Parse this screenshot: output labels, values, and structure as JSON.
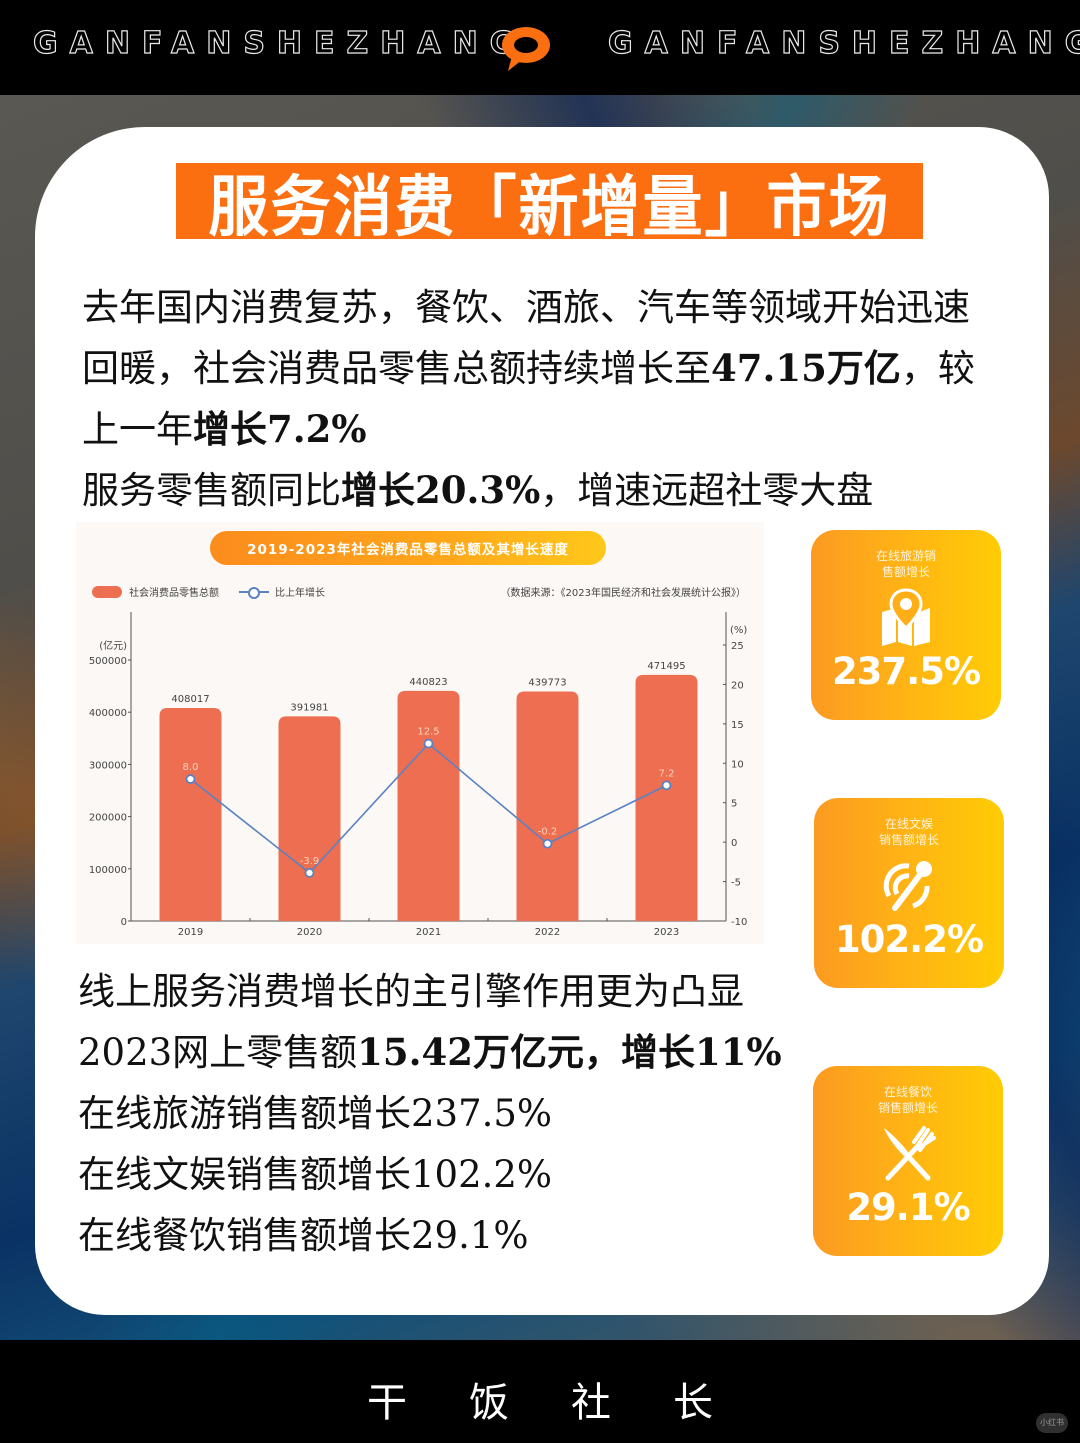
{
  "header": {
    "brand_left": "GANFANSHEZHANG",
    "brand_right": "GANFANSHEZHANG",
    "icon": "chat-bubble-icon",
    "accent": "#fb6f10"
  },
  "title": "服务消费「新增量」市场",
  "intro": {
    "line1": "去年国内消费复苏，餐饮、酒旅、汽车等领域开始迅速",
    "line2_a": "回暖，社会消费品零售总额持续增长至",
    "line2_b": "47.15万亿",
    "line2_c": "，较",
    "line3_a": "上一年",
    "line3_b": "增长7.2%",
    "line4_a": "服务零售额同比",
    "line4_b": "增长20.3%",
    "line4_c": "，增速远超社零大盘"
  },
  "chart_data": {
    "type": "bar",
    "title": "2019-2023年社会消费品零售总额及其增长速度",
    "source": "（数据来源：《2023年国民经济和社会发展统计公报》）",
    "categories": [
      "2019",
      "2020",
      "2021",
      "2022",
      "2023"
    ],
    "series": [
      {
        "name": "社会消费品零售总额",
        "type": "bar",
        "axis": "left",
        "unit": "亿元",
        "color": "#ee6e52",
        "values": [
          408017,
          391981,
          440823,
          439773,
          471495
        ]
      },
      {
        "name": "比上年增长",
        "type": "line",
        "axis": "right",
        "unit": "%",
        "color": "#5b82c2",
        "values": [
          8.0,
          -3.9,
          12.5,
          -0.2,
          7.2
        ]
      }
    ],
    "left_axis": {
      "label": "(亿元)",
      "ticks": [
        0,
        100000,
        200000,
        300000,
        400000,
        500000
      ],
      "ylim": [
        0,
        500000
      ]
    },
    "right_axis": {
      "label": "(%)",
      "ticks": [
        -10,
        -5,
        0,
        5,
        10,
        15,
        20,
        25
      ],
      "ylim": [
        -10,
        25
      ]
    },
    "legend_position": "top-left",
    "grid": false
  },
  "stats": [
    {
      "label": "在线旅游销\n售额增长",
      "value": "237.5%",
      "icon": "map-pin-icon"
    },
    {
      "label": "在线文娱\n销售额增长",
      "value": "102.2%",
      "icon": "microphone-icon"
    },
    {
      "label": "在线餐饮\n销售额增长",
      "value": "29.1%",
      "icon": "knife-fork-icon"
    }
  ],
  "online": {
    "line1": "线上服务消费增长的主引擎作用更为凸显",
    "line2_a": "2023网上零售额",
    "line2_b": "15.42万亿元，增长11%",
    "line3": "在线旅游销售额增长237.5%",
    "line4": "在线文娱销售额增长102.2%",
    "line5": "在线餐饮销售额增长29.1%"
  },
  "footer": {
    "text": "干饭社长",
    "watermark": "小红书"
  }
}
